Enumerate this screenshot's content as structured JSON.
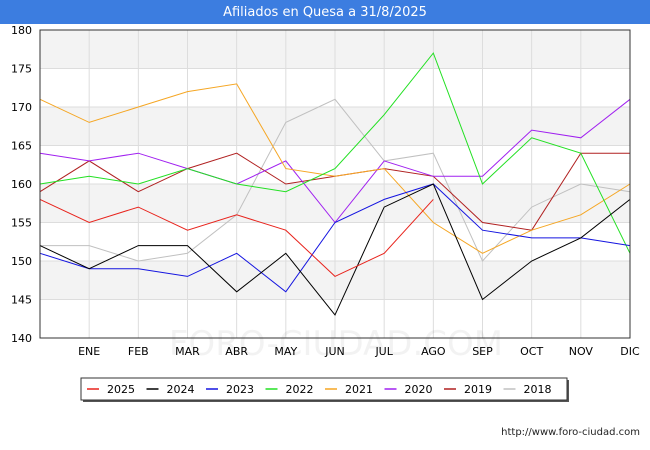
{
  "title": "Afiliados en Quesa a 31/8/2025",
  "footer_url": "http://www.foro-ciudad.com",
  "watermark": "FORO-CIUDAD.COM",
  "chart_data": {
    "type": "line",
    "title": "Afiliados en Quesa a 31/8/2025",
    "xlabel": "",
    "ylabel": "",
    "categories": [
      "",
      "ENE",
      "FEB",
      "MAR",
      "ABR",
      "MAY",
      "JUN",
      "JUL",
      "AGO",
      "SEP",
      "OCT",
      "NOV",
      "DIC"
    ],
    "ylim": [
      140,
      180
    ],
    "yticks": [
      140,
      145,
      150,
      155,
      160,
      165,
      170,
      175,
      180
    ],
    "grid": true,
    "legend_position": "bottom",
    "series": [
      {
        "name": "2025",
        "color": "#e8231c",
        "values": [
          158,
          155,
          157,
          154,
          156,
          154,
          148,
          151,
          158,
          null,
          null,
          null,
          null
        ]
      },
      {
        "name": "2024",
        "color": "#000000",
        "values": [
          152,
          149,
          152,
          152,
          146,
          151,
          143,
          157,
          160,
          145,
          150,
          153,
          158
        ]
      },
      {
        "name": "2023",
        "color": "#1414e0",
        "values": [
          151,
          149,
          149,
          148,
          151,
          146,
          155,
          158,
          160,
          154,
          153,
          153,
          152
        ]
      },
      {
        "name": "2022",
        "color": "#22e022",
        "values": [
          160,
          161,
          160,
          162,
          160,
          159,
          162,
          169,
          177,
          160,
          166,
          164,
          151
        ]
      },
      {
        "name": "2021",
        "color": "#f5a623",
        "values": [
          171,
          168,
          170,
          172,
          173,
          162,
          161,
          162,
          155,
          151,
          154,
          156,
          160
        ]
      },
      {
        "name": "2020",
        "color": "#a020f0",
        "values": [
          164,
          163,
          164,
          162,
          160,
          163,
          155,
          163,
          161,
          161,
          167,
          166,
          171
        ]
      },
      {
        "name": "2019",
        "color": "#b02020",
        "values": [
          159,
          163,
          159,
          162,
          164,
          160,
          161,
          162,
          161,
          155,
          154,
          164,
          164
        ]
      },
      {
        "name": "2018",
        "color": "#c0c0c0",
        "values": [
          152,
          152,
          150,
          151,
          156,
          168,
          171,
          163,
          164,
          150,
          157,
          160,
          159
        ]
      }
    ]
  }
}
